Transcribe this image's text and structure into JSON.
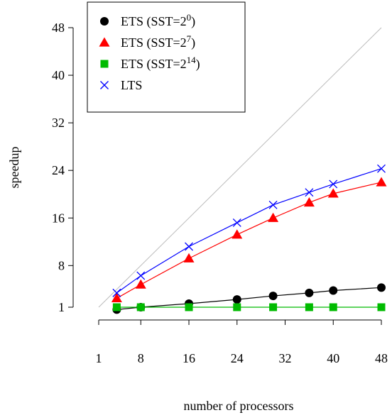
{
  "chart_data": {
    "type": "line",
    "xlabel": "number of processors",
    "ylabel": "speedup",
    "xlim": [
      1,
      48
    ],
    "ylim": [
      1,
      50
    ],
    "x_ticks": [
      1,
      8,
      16,
      24,
      32,
      40,
      48
    ],
    "y_ticks": [
      1,
      8,
      16,
      24,
      32,
      40,
      48
    ],
    "x": [
      4,
      8,
      16,
      24,
      30,
      36,
      40,
      48
    ],
    "reference_line": {
      "from": [
        1,
        1
      ],
      "to": [
        48,
        48
      ],
      "color": "#bbbbbb"
    },
    "legend_position": "top-left",
    "series": [
      {
        "name": "ETS (SST=2",
        "sup": "0",
        "suffix": ")",
        "marker": "circle",
        "color": "#000000",
        "x": [
          4,
          8,
          16,
          24,
          30,
          36,
          40,
          48
        ],
        "values": [
          0.6,
          1.0,
          1.6,
          2.3,
          2.9,
          3.4,
          3.8,
          4.3
        ]
      },
      {
        "name": "ETS (SST=2",
        "sup": "7",
        "suffix": ")",
        "marker": "triangle",
        "color": "#ff0000",
        "x": [
          4,
          8,
          16,
          24,
          30,
          36,
          40,
          48
        ],
        "values": [
          2.5,
          4.8,
          9.2,
          13.2,
          16.0,
          18.6,
          20.1,
          22.0
        ]
      },
      {
        "name": "ETS (SST=2",
        "sup": "14",
        "suffix": ")",
        "marker": "square",
        "color": "#00bb00",
        "x": [
          4,
          8,
          16,
          24,
          30,
          36,
          40,
          48
        ],
        "values": [
          1.0,
          1.0,
          1.0,
          1.0,
          1.0,
          1.0,
          1.0,
          1.0
        ]
      },
      {
        "name": "LTS",
        "sup": "",
        "suffix": "",
        "marker": "cross",
        "color": "#0000ff",
        "x": [
          4,
          8,
          16,
          24,
          30,
          36,
          40,
          48
        ],
        "values": [
          3.4,
          6.3,
          11.2,
          15.2,
          18.2,
          20.3,
          21.7,
          24.3
        ]
      }
    ]
  }
}
